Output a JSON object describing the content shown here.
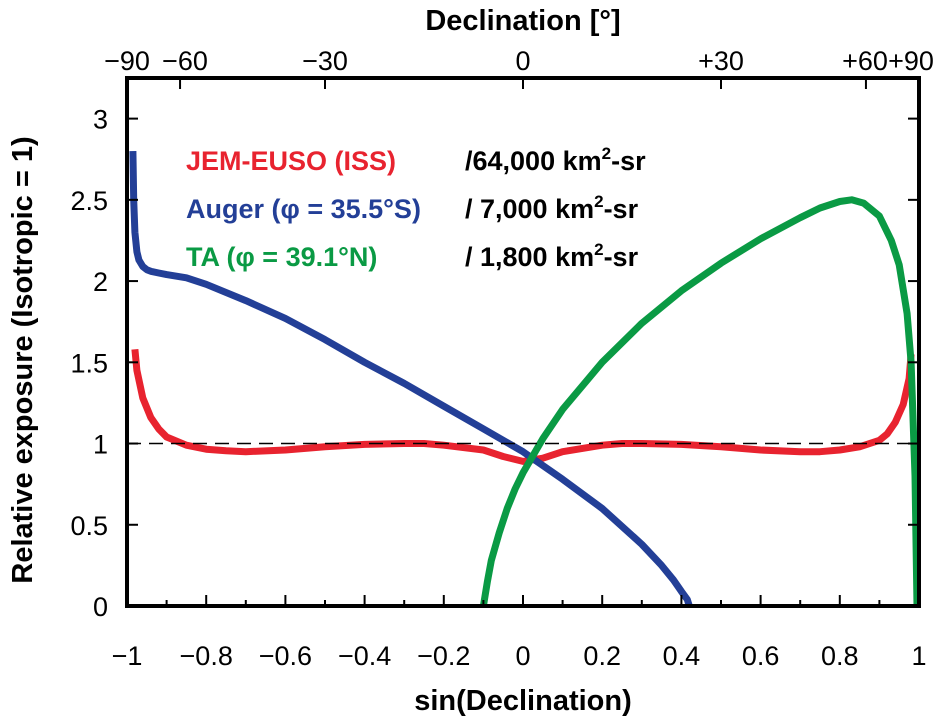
{
  "chart_data": {
    "type": "line",
    "title": "",
    "xlabel": "sin(Declination)",
    "x2label": "Declination [°]",
    "ylabel": "Relative exposure (Isotropic = 1)",
    "xlim": [
      -1,
      1
    ],
    "ylim": [
      0,
      3.25
    ],
    "grid": false,
    "xticks": [
      -1,
      -0.8,
      -0.6,
      -0.4,
      -0.2,
      0,
      0.2,
      0.4,
      0.6,
      0.8,
      1
    ],
    "xtick_labels": [
      "−1",
      "−0.8",
      "−0.6",
      "−0.4",
      "−0.2",
      "0",
      "0.2",
      "0.4",
      "0.6",
      "0.8",
      "1"
    ],
    "yticks": [
      0,
      0.5,
      1,
      1.5,
      2,
      2.5,
      3
    ],
    "ytick_labels": [
      "0",
      "0.5",
      "1",
      "1.5",
      "2",
      "2.5",
      "3"
    ],
    "x2ticks_deg": [
      -90,
      -60,
      -30,
      0,
      30,
      60,
      90
    ],
    "x2tick_labels": [
      "−90",
      "−60",
      "−30",
      "0",
      "+30",
      "+60",
      "+90"
    ],
    "reference_line": {
      "y": 1,
      "style": "dashed"
    },
    "legend_placement": "top-left",
    "series": [
      {
        "name": "JEM-EUSO (ISS)",
        "annotation_value": "64,000",
        "annotation_unit": "km",
        "annotation_sup": "2",
        "annotation_suffix": "-sr",
        "color": "#e8232f",
        "x": [
          -0.98,
          -0.975,
          -0.96,
          -0.94,
          -0.92,
          -0.9,
          -0.85,
          -0.8,
          -0.75,
          -0.7,
          -0.6,
          -0.5,
          -0.4,
          -0.3,
          -0.25,
          -0.2,
          -0.1,
          -0.05,
          0,
          0.05,
          0.1,
          0.2,
          0.25,
          0.3,
          0.4,
          0.5,
          0.6,
          0.7,
          0.75,
          0.8,
          0.85,
          0.9,
          0.92,
          0.94,
          0.96,
          0.975,
          0.98
        ],
        "y": [
          1.58,
          1.45,
          1.28,
          1.16,
          1.09,
          1.04,
          0.99,
          0.965,
          0.955,
          0.95,
          0.96,
          0.98,
          0.995,
          1.0,
          1.0,
          0.99,
          0.96,
          0.92,
          0.89,
          0.91,
          0.95,
          0.99,
          1.0,
          1.0,
          0.995,
          0.98,
          0.96,
          0.95,
          0.95,
          0.96,
          0.98,
          1.02,
          1.06,
          1.13,
          1.24,
          1.4,
          1.55
        ]
      },
      {
        "name": "Auger (φ = 35.5°S)",
        "annotation_value": "7,000",
        "annotation_unit": "km",
        "annotation_sup": "2",
        "annotation_suffix": "-sr",
        "color": "#233f97",
        "x": [
          -0.985,
          -0.983,
          -0.98,
          -0.975,
          -0.97,
          -0.96,
          -0.95,
          -0.94,
          -0.92,
          -0.9,
          -0.85,
          -0.8,
          -0.7,
          -0.6,
          -0.5,
          -0.4,
          -0.3,
          -0.2,
          -0.1,
          0,
          0.1,
          0.2,
          0.3,
          0.35,
          0.38,
          0.4,
          0.415,
          0.42
        ],
        "y": [
          2.8,
          2.5,
          2.3,
          2.18,
          2.13,
          2.09,
          2.07,
          2.06,
          2.05,
          2.04,
          2.02,
          1.98,
          1.88,
          1.77,
          1.64,
          1.5,
          1.37,
          1.23,
          1.09,
          0.95,
          0.78,
          0.6,
          0.38,
          0.25,
          0.16,
          0.09,
          0.04,
          0.0
        ]
      },
      {
        "name": "TA (φ = 39.1°N)",
        "annotation_value": "1,800",
        "annotation_unit": "km",
        "annotation_sup": "2",
        "annotation_suffix": "-sr",
        "color": "#0a9a44",
        "x": [
          -0.1,
          -0.09,
          -0.08,
          -0.06,
          -0.04,
          -0.02,
          0,
          0.05,
          0.1,
          0.2,
          0.3,
          0.4,
          0.5,
          0.6,
          0.7,
          0.75,
          0.8,
          0.83,
          0.86,
          0.9,
          0.93,
          0.95,
          0.97,
          0.98,
          0.99,
          0.995
        ],
        "y": [
          0.0,
          0.15,
          0.28,
          0.45,
          0.6,
          0.72,
          0.82,
          1.03,
          1.21,
          1.5,
          1.74,
          1.94,
          2.11,
          2.26,
          2.39,
          2.45,
          2.49,
          2.5,
          2.48,
          2.4,
          2.25,
          2.1,
          1.8,
          1.5,
          0.8,
          0.0
        ]
      }
    ]
  }
}
